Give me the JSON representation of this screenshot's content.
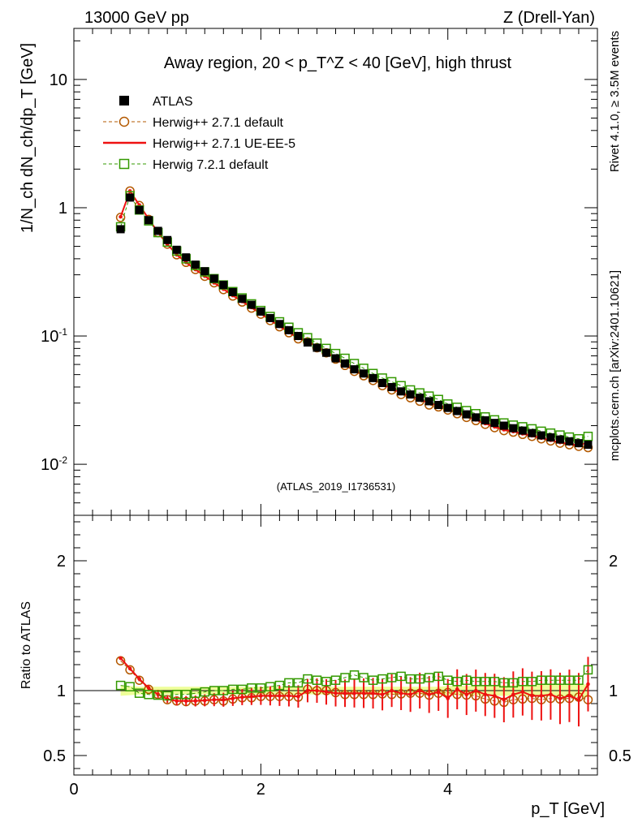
{
  "header": {
    "left": "13000 GeV pp",
    "right": "Z (Drell-Yan)"
  },
  "side_labels": {
    "rivet": "Rivet 4.1.0, ≥ 3.5M events",
    "source": "mcplots.cern.ch [arXiv:2401.10621]"
  },
  "chart_data": [
    {
      "type": "line",
      "panel": "main",
      "title": "Away region, 20 < p_T^Z < 40 [GeV], high thrust",
      "watermark": "(ATLAS_2019_I1736531)",
      "ylabel": "1/N_ch dN_ch/dp_T [GeV]",
      "yscale": "log",
      "xlim": [
        0,
        5.6
      ],
      "ylim": [
        0.004,
        25
      ],
      "y_ticks": [
        "10^-2",
        "10^-1",
        "1",
        "10"
      ],
      "x": [
        0.5,
        0.6,
        0.7,
        0.8,
        0.9,
        1.0,
        1.1,
        1.2,
        1.3,
        1.4,
        1.5,
        1.6,
        1.7,
        1.8,
        1.9,
        2.0,
        2.1,
        2.2,
        2.3,
        2.4,
        2.5,
        2.6,
        2.7,
        2.8,
        2.9,
        3.0,
        3.1,
        3.2,
        3.3,
        3.4,
        3.5,
        3.6,
        3.7,
        3.8,
        3.9,
        4.0,
        4.1,
        4.2,
        4.3,
        4.4,
        4.5,
        4.6,
        4.7,
        4.8,
        4.9,
        5.0,
        5.1,
        5.2,
        5.3,
        5.4,
        5.5
      ],
      "series": [
        {
          "name": "ATLAS",
          "color": "#000000",
          "marker": "square-filled",
          "values": [
            0.68,
            1.2,
            0.96,
            0.8,
            0.66,
            0.56,
            0.47,
            0.41,
            0.36,
            0.32,
            0.28,
            0.25,
            0.22,
            0.195,
            0.175,
            0.155,
            0.138,
            0.124,
            0.111,
            0.1,
            0.089,
            0.081,
            0.074,
            0.067,
            0.061,
            0.055,
            0.051,
            0.047,
            0.043,
            0.04,
            0.037,
            0.035,
            0.033,
            0.031,
            0.029,
            0.0275,
            0.026,
            0.0245,
            0.0232,
            0.022,
            0.021,
            0.02,
            0.0191,
            0.0183,
            0.0175,
            0.0168,
            0.0162,
            0.0156,
            0.0151,
            0.0146,
            0.0142
          ]
        },
        {
          "name": "Herwig++ 2.7.1 default",
          "color": "#b35900",
          "marker": "circle-open",
          "values": [
            0.84,
            1.35,
            1.04,
            0.81,
            0.64,
            0.52,
            0.43,
            0.375,
            0.33,
            0.292,
            0.26,
            0.23,
            0.205,
            0.184,
            0.165,
            0.148,
            0.132,
            0.118,
            0.106,
            0.095,
            0.09,
            0.081,
            0.074,
            0.066,
            0.059,
            0.053,
            0.049,
            0.045,
            0.041,
            0.038,
            0.035,
            0.033,
            0.031,
            0.029,
            0.028,
            0.0265,
            0.0248,
            0.0232,
            0.0219,
            0.0205,
            0.0193,
            0.0183,
            0.0178,
            0.0171,
            0.0165,
            0.0158,
            0.0152,
            0.0146,
            0.0142,
            0.0138,
            0.0135
          ]
        },
        {
          "name": "Herwig++ 2.7.1 UE-EE-5",
          "color": "#ee1111",
          "marker": "line",
          "values": [
            0.85,
            1.35,
            1.05,
            0.82,
            0.64,
            0.52,
            0.43,
            0.375,
            0.33,
            0.293,
            0.26,
            0.232,
            0.207,
            0.186,
            0.167,
            0.149,
            0.133,
            0.119,
            0.107,
            0.096,
            0.091,
            0.082,
            0.075,
            0.067,
            0.06,
            0.054,
            0.05,
            0.046,
            0.042,
            0.039,
            0.036,
            0.034,
            0.032,
            0.03,
            0.029,
            0.027,
            0.0252,
            0.0236,
            0.0222,
            0.0208,
            0.0196,
            0.0186,
            0.018,
            0.0173,
            0.0167,
            0.016,
            0.0154,
            0.0148,
            0.0144,
            0.014,
            0.0149
          ]
        },
        {
          "name": "Herwig 7.2.1 default",
          "color": "#339900",
          "marker": "square-open",
          "values": [
            0.71,
            1.24,
            0.96,
            0.79,
            0.64,
            0.54,
            0.46,
            0.4,
            0.354,
            0.316,
            0.28,
            0.25,
            0.222,
            0.198,
            0.178,
            0.158,
            0.142,
            0.129,
            0.117,
            0.106,
            0.097,
            0.088,
            0.08,
            0.073,
            0.067,
            0.061,
            0.056,
            0.051,
            0.047,
            0.044,
            0.041,
            0.038,
            0.036,
            0.034,
            0.032,
            0.0295,
            0.0278,
            0.0262,
            0.0248,
            0.0234,
            0.0222,
            0.021,
            0.0202,
            0.0196,
            0.0189,
            0.0181,
            0.0175,
            0.0169,
            0.0163,
            0.0158,
            0.0165
          ]
        }
      ]
    },
    {
      "type": "line",
      "panel": "ratio",
      "ylabel": "Ratio to ATLAS",
      "xlabel": "p_T [GeV]",
      "xlim": [
        0,
        5.6
      ],
      "ylim": [
        0.35,
        2.35
      ],
      "x_ticks": [
        "0",
        "2",
        "4"
      ],
      "y_ticks": [
        "0.5",
        "1",
        "2"
      ],
      "x": [
        0.5,
        0.6,
        0.7,
        0.8,
        0.9,
        1.0,
        1.1,
        1.2,
        1.3,
        1.4,
        1.5,
        1.6,
        1.7,
        1.8,
        1.9,
        2.0,
        2.1,
        2.2,
        2.3,
        2.4,
        2.5,
        2.6,
        2.7,
        2.8,
        2.9,
        3.0,
        3.1,
        3.2,
        3.3,
        3.4,
        3.5,
        3.6,
        3.7,
        3.8,
        3.9,
        4.0,
        4.1,
        4.2,
        4.3,
        4.4,
        4.5,
        4.6,
        4.7,
        4.8,
        4.9,
        5.0,
        5.1,
        5.2,
        5.3,
        5.4,
        5.5
      ],
      "band_halfwidth": [
        0.04,
        0.035,
        0.03,
        0.03,
        0.03,
        0.03,
        0.03,
        0.03,
        0.03,
        0.03,
        0.03,
        0.03,
        0.03,
        0.03,
        0.03,
        0.03,
        0.03,
        0.03,
        0.03,
        0.03,
        0.03,
        0.03,
        0.03,
        0.03,
        0.03,
        0.03,
        0.03,
        0.03,
        0.03,
        0.03,
        0.03,
        0.03,
        0.03,
        0.03,
        0.03,
        0.035,
        0.035,
        0.035,
        0.035,
        0.04,
        0.04,
        0.04,
        0.04,
        0.04,
        0.04,
        0.045,
        0.045,
        0.045,
        0.045,
        0.045,
        0.05
      ],
      "series": [
        {
          "name": "Herwig++ 2.7.1 default",
          "color": "#b35900",
          "marker": "circle-open",
          "values": [
            1.23,
            1.16,
            1.08,
            1.01,
            0.97,
            0.93,
            0.92,
            0.915,
            0.92,
            0.92,
            0.93,
            0.92,
            0.935,
            0.945,
            0.945,
            0.955,
            0.955,
            0.955,
            0.955,
            0.95,
            1.01,
            1.0,
            1.0,
            0.985,
            0.97,
            0.97,
            0.97,
            0.97,
            0.975,
            0.97,
            0.975,
            0.98,
            0.98,
            0.965,
            0.98,
            0.985,
            0.97,
            0.965,
            0.96,
            0.935,
            0.92,
            0.91,
            0.93,
            0.935,
            0.94,
            0.93,
            0.94,
            0.935,
            0.94,
            0.95,
            0.93
          ]
        },
        {
          "name": "Herwig++ 2.7.1 UE-EE-5",
          "color": "#ee1111",
          "marker": "line",
          "values": [
            1.25,
            1.17,
            1.09,
            1.02,
            0.97,
            0.935,
            0.92,
            0.92,
            0.92,
            0.925,
            0.93,
            0.93,
            0.94,
            0.95,
            0.955,
            0.96,
            0.96,
            0.96,
            0.96,
            0.955,
            1.0,
            1.0,
            0.99,
            0.98,
            0.98,
            0.98,
            0.98,
            0.98,
            0.97,
            1.0,
            0.98,
            0.97,
            1.0,
            0.97,
            0.99,
            0.94,
            1.01,
            0.97,
            1.0,
            0.97,
            0.96,
            0.93,
            0.97,
            0.99,
            0.96,
            0.96,
            0.97,
            0.94,
            0.96,
            0.93,
            1.05
          ]
        },
        {
          "name": "Herwig 7.2.1 default",
          "color": "#339900",
          "marker": "square-open",
          "values": [
            1.04,
            1.03,
            0.98,
            0.97,
            0.965,
            0.96,
            0.97,
            0.97,
            0.98,
            0.99,
            1.0,
            1.0,
            1.01,
            1.01,
            1.02,
            1.02,
            1.03,
            1.04,
            1.06,
            1.06,
            1.09,
            1.08,
            1.07,
            1.08,
            1.1,
            1.12,
            1.1,
            1.08,
            1.09,
            1.1,
            1.11,
            1.09,
            1.09,
            1.1,
            1.11,
            1.08,
            1.07,
            1.08,
            1.07,
            1.07,
            1.07,
            1.06,
            1.06,
            1.07,
            1.07,
            1.08,
            1.08,
            1.08,
            1.08,
            1.08,
            1.16
          ]
        }
      ]
    }
  ]
}
